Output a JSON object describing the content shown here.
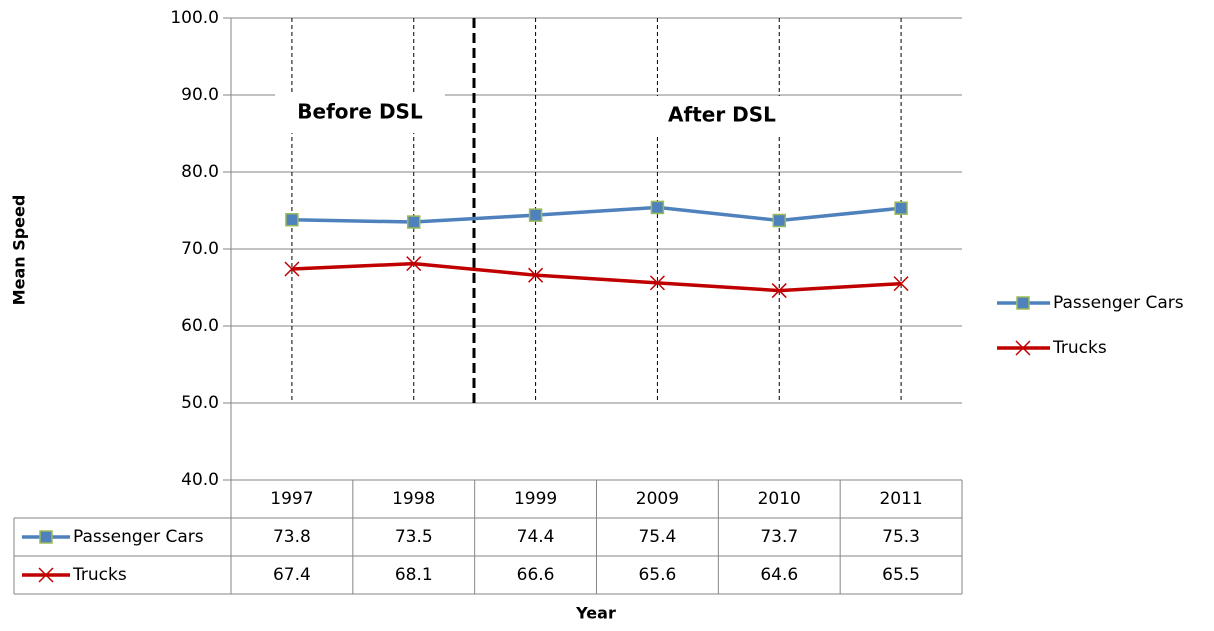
{
  "chart_data": {
    "type": "line",
    "y_label": "Mean Speed",
    "x_label": "Year",
    "categories": [
      "1997",
      "1998",
      "1999",
      "2009",
      "2010",
      "2011"
    ],
    "series": [
      {
        "name": "Passenger Cars",
        "color": "#4f81bd",
        "marker": "square",
        "values": [
          73.8,
          73.5,
          74.4,
          75.4,
          73.7,
          75.3
        ]
      },
      {
        "name": "Trucks",
        "color": "#c00000",
        "marker": "x",
        "values": [
          67.4,
          68.1,
          66.6,
          65.6,
          64.6,
          65.5
        ]
      }
    ],
    "ylim": [
      40,
      100
    ],
    "yticks": [
      {
        "value": 40,
        "label": "40.0"
      },
      {
        "value": 50,
        "label": "50.0"
      },
      {
        "value": 60,
        "label": "60.0"
      },
      {
        "value": 70,
        "label": "70.0"
      },
      {
        "value": 80,
        "label": "80.0"
      },
      {
        "value": 90,
        "label": "90.0"
      },
      {
        "value": 100,
        "label": "100.0"
      }
    ],
    "grid": true,
    "legend": "right",
    "annotations": [
      "Before DSL",
      "After DSL"
    ]
  }
}
